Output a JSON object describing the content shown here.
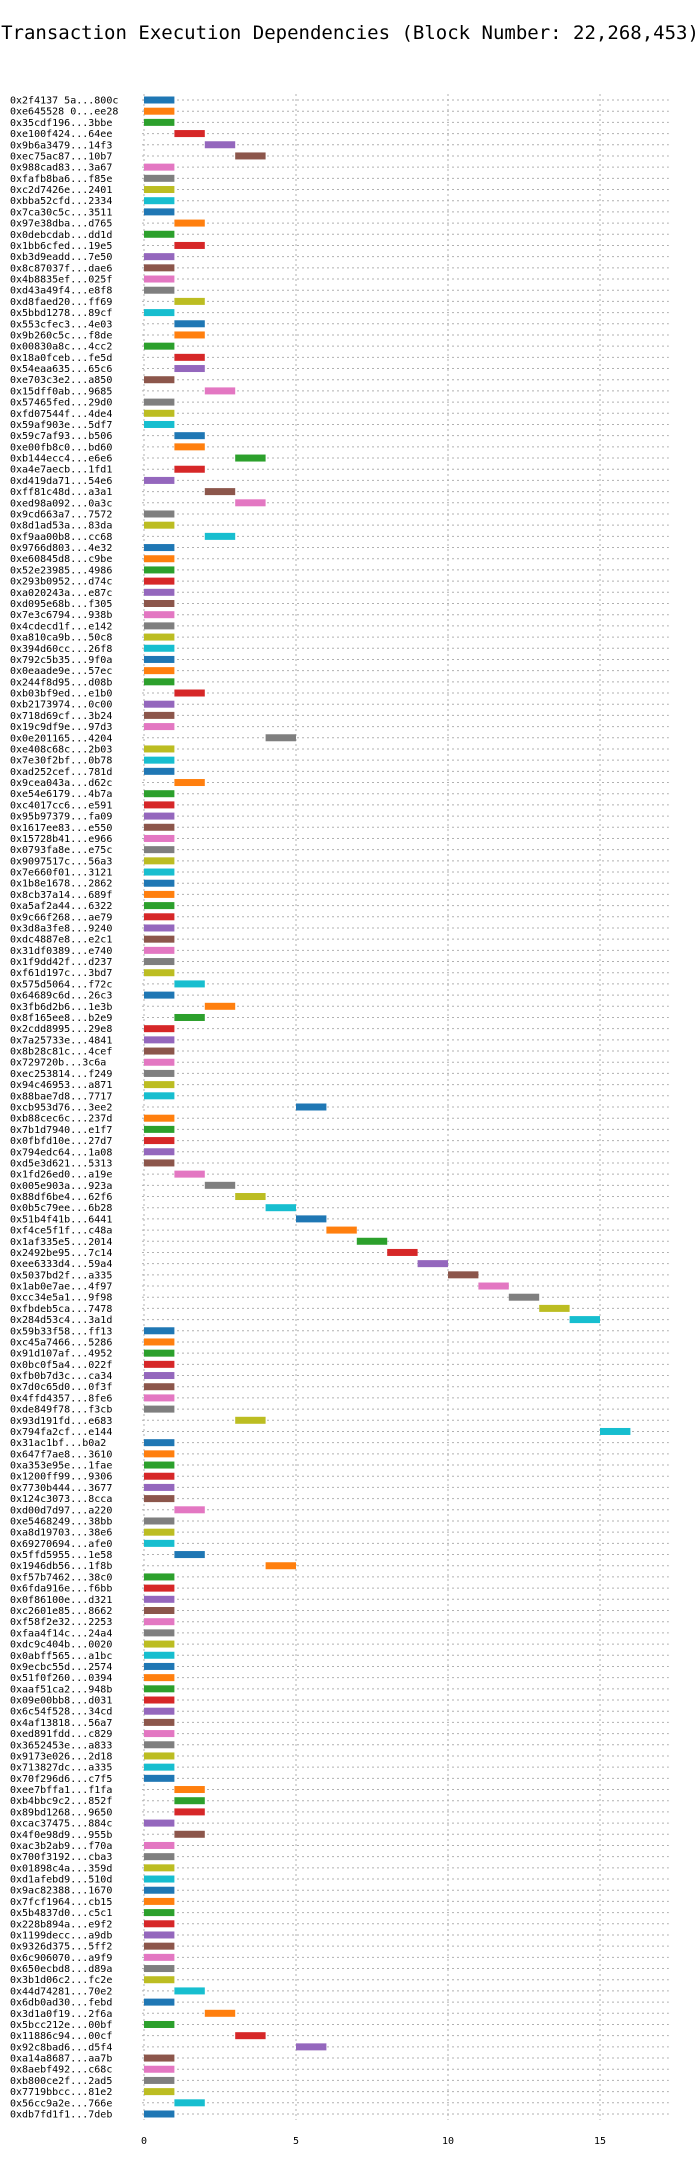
{
  "chart_data": {
    "type": "bar",
    "orientation": "horizontal-gantt",
    "title": "Transaction Execution Dependencies (Block Number: 22,268,453)",
    "xlabel": "",
    "ylabel": "",
    "xlim": [
      0,
      17
    ],
    "xticks": [
      0,
      5,
      10,
      15
    ],
    "grid": true,
    "palette": [
      "#1f77b4",
      "#ff7f0e",
      "#2ca02c",
      "#d62728",
      "#9467bd",
      "#8c564b",
      "#e377c2",
      "#7f7f7f",
      "#bcbd22",
      "#17becf"
    ],
    "bars": [
      {
        "label": "0x2f4137 5a...800c",
        "start": 0
      },
      {
        "label": "0xe645528 0...ee28",
        "start": 0
      },
      {
        "label": "0x35cdf196...3bbe",
        "start": 0
      },
      {
        "label": "0xe100f424...64ee",
        "start": 1
      },
      {
        "label": "0x9b6a3479...14f3",
        "start": 2
      },
      {
        "label": "0xec75ac87...10b7",
        "start": 3
      },
      {
        "label": "0x988cad83...3a67",
        "start": 0
      },
      {
        "label": "0xfafb8ba6...f85e",
        "start": 0
      },
      {
        "label": "0xc2d7426e...2401",
        "start": 0
      },
      {
        "label": "0xbba52cfd...2334",
        "start": 0
      },
      {
        "label": "0x7ca30c5c...3511",
        "start": 0
      },
      {
        "label": "0x97e38dba...d765",
        "start": 1
      },
      {
        "label": "0x0debcdab...dd1d",
        "start": 0
      },
      {
        "label": "0x1bb6cfed...19e5",
        "start": 1
      },
      {
        "label": "0xb3d9eadd...7e50",
        "start": 0
      },
      {
        "label": "0x8c87037f...dae6",
        "start": 0
      },
      {
        "label": "0x4b8835ef...025f",
        "start": 0
      },
      {
        "label": "0xd43a49f4...e8f8",
        "start": 0
      },
      {
        "label": "0xd8faed20...ff69",
        "start": 1
      },
      {
        "label": "0x5bbd1278...89cf",
        "start": 0
      },
      {
        "label": "0x553cfec3...4e03",
        "start": 1
      },
      {
        "label": "0x9b260c5c...f8de",
        "start": 1
      },
      {
        "label": "0x00830a8c...4cc2",
        "start": 0
      },
      {
        "label": "0x18a0fceb...fe5d",
        "start": 1
      },
      {
        "label": "0x54eaa635...65c6",
        "start": 1
      },
      {
        "label": "0xe703c3e2...a850",
        "start": 0
      },
      {
        "label": "0x15dff0ab...9685",
        "start": 2
      },
      {
        "label": "0x57465fed...29d0",
        "start": 0
      },
      {
        "label": "0xfd07544f...4de4",
        "start": 0
      },
      {
        "label": "0x59af903e...5df7",
        "start": 0
      },
      {
        "label": "0x59c7af93...b506",
        "start": 1
      },
      {
        "label": "0xe00fb8c0...bd60",
        "start": 1
      },
      {
        "label": "0xb144ecc4...e6e6",
        "start": 3
      },
      {
        "label": "0xa4e7aecb...1fd1",
        "start": 1
      },
      {
        "label": "0xd419da71...54e6",
        "start": 0
      },
      {
        "label": "0xff81c48d...a3a1",
        "start": 2
      },
      {
        "label": "0xed98a092...0a3c",
        "start": 3
      },
      {
        "label": "0x9cd663a7...7572",
        "start": 0
      },
      {
        "label": "0x8d1ad53a...83da",
        "start": 0
      },
      {
        "label": "0xf9aa00b8...cc68",
        "start": 2
      },
      {
        "label": "0x9766d803...4e32",
        "start": 0
      },
      {
        "label": "0xe60845d8...c9be",
        "start": 0
      },
      {
        "label": "0x52e23985...4986",
        "start": 0
      },
      {
        "label": "0x293b0952...d74c",
        "start": 0
      },
      {
        "label": "0xa020243a...e87c",
        "start": 0
      },
      {
        "label": "0xd095e68b...f305",
        "start": 0
      },
      {
        "label": "0x7e3c6794...938b",
        "start": 0
      },
      {
        "label": "0x4cdecd1f...e142",
        "start": 0
      },
      {
        "label": "0xa810ca9b...50c8",
        "start": 0
      },
      {
        "label": "0x394d60cc...26f8",
        "start": 0
      },
      {
        "label": "0x792c5b35...9f0a",
        "start": 0
      },
      {
        "label": "0x0eaade9e...57ec",
        "start": 0
      },
      {
        "label": "0x244f8d95...d08b",
        "start": 0
      },
      {
        "label": "0xb03bf9ed...e1b0",
        "start": 1
      },
      {
        "label": "0xb2173974...0c00",
        "start": 0
      },
      {
        "label": "0x718d69cf...3b24",
        "start": 0
      },
      {
        "label": "0x19c9df9e...97d3",
        "start": 0
      },
      {
        "label": "0x0e201165...4204",
        "start": 4
      },
      {
        "label": "0xe408c68c...2b03",
        "start": 0
      },
      {
        "label": "0x7e30f2bf...0b78",
        "start": 0
      },
      {
        "label": "0xad252cef...781d",
        "start": 0
      },
      {
        "label": "0x9cea043a...d62c",
        "start": 1
      },
      {
        "label": "0xe54e6179...4b7a",
        "start": 0
      },
      {
        "label": "0xc4017cc6...e591",
        "start": 0
      },
      {
        "label": "0x95b97379...fa09",
        "start": 0
      },
      {
        "label": "0x1617ee83...e550",
        "start": 0
      },
      {
        "label": "0x15728b41...e966",
        "start": 0
      },
      {
        "label": "0x0793fa8e...e75c",
        "start": 0
      },
      {
        "label": "0x9097517c...56a3",
        "start": 0
      },
      {
        "label": "0x7e660f01...3121",
        "start": 0
      },
      {
        "label": "0x1b8e1678...2862",
        "start": 0
      },
      {
        "label": "0x8cb37a14...689f",
        "start": 0
      },
      {
        "label": "0xa5af2a44...6322",
        "start": 0
      },
      {
        "label": "0x9c66f268...ae79",
        "start": 0
      },
      {
        "label": "0x3d8a3fe8...9240",
        "start": 0
      },
      {
        "label": "0xdc4887e8...e2c1",
        "start": 0
      },
      {
        "label": "0x31df0389...e740",
        "start": 0
      },
      {
        "label": "0x1f9dd42f...d237",
        "start": 0
      },
      {
        "label": "0xf61d197c...3bd7",
        "start": 0
      },
      {
        "label": "0x575d5064...f72c",
        "start": 1
      },
      {
        "label": "0x64689c6d...26c3",
        "start": 0
      },
      {
        "label": "0x3fb6d2b6...1e3b",
        "start": 2
      },
      {
        "label": "0x8f165ee8...b2e9",
        "start": 1
      },
      {
        "label": "0x2cdd8995...29e8",
        "start": 0
      },
      {
        "label": "0x7a25733e...4841",
        "start": 0
      },
      {
        "label": "0x8b28c81c...4cef",
        "start": 0
      },
      {
        "label": "0x729720b...3c6a",
        "start": 0
      },
      {
        "label": "0xec253814...f249",
        "start": 0
      },
      {
        "label": "0x94c46953...a871",
        "start": 0
      },
      {
        "label": "0x88bae7d8...7717",
        "start": 0
      },
      {
        "label": "0xcb953d76...3ee2",
        "start": 5
      },
      {
        "label": "0xb88cec6c...237d",
        "start": 0
      },
      {
        "label": "0x7b1d7940...e1f7",
        "start": 0
      },
      {
        "label": "0x0fbfd10e...27d7",
        "start": 0
      },
      {
        "label": "0x794edc64...1a08",
        "start": 0
      },
      {
        "label": "0xd5e3d621...5313",
        "start": 0
      },
      {
        "label": "0x1fd26ed0...a19e",
        "start": 1
      },
      {
        "label": "0x005e903a...923a",
        "start": 2
      },
      {
        "label": "0x88df6be4...62f6",
        "start": 3
      },
      {
        "label": "0x0b5c79ee...6b28",
        "start": 4
      },
      {
        "label": "0x51b4f41b...6441",
        "start": 5
      },
      {
        "label": "0xf4ce5f1f...c48a",
        "start": 6
      },
      {
        "label": "0x1af335e5...2014",
        "start": 7
      },
      {
        "label": "0x2492be95...7c14",
        "start": 8
      },
      {
        "label": "0xee6333d4...59a4",
        "start": 9
      },
      {
        "label": "0x5037bd2f...a335",
        "start": 10
      },
      {
        "label": "0x1ab0e7ae...4f97",
        "start": 11
      },
      {
        "label": "0xcc34e5a1...9f98",
        "start": 12
      },
      {
        "label": "0xfbdeb5ca...7478",
        "start": 13
      },
      {
        "label": "0x284d53c4...3a1d",
        "start": 14
      },
      {
        "label": "0x59b33f58...ff13",
        "start": 0
      },
      {
        "label": "0xc45a7466...5286",
        "start": 0
      },
      {
        "label": "0x91d107af...4952",
        "start": 0
      },
      {
        "label": "0x0bc0f5a4...022f",
        "start": 0
      },
      {
        "label": "0xfb0b7d3c...ca34",
        "start": 0
      },
      {
        "label": "0x7d0c65d0...0f3f",
        "start": 0
      },
      {
        "label": "0x4ffd4357...8fe6",
        "start": 0
      },
      {
        "label": "0xde849f78...f3cb",
        "start": 0
      },
      {
        "label": "0x93d191fd...e683",
        "start": 3
      },
      {
        "label": "0x794fa2cf...e144",
        "start": 15
      },
      {
        "label": "0x31ac1bf...b0a2",
        "start": 0
      },
      {
        "label": "0x647f7ae8...3610",
        "start": 0
      },
      {
        "label": "0xa353e95e...1fae",
        "start": 0
      },
      {
        "label": "0x1200ff99...9306",
        "start": 0
      },
      {
        "label": "0x7730b444...3677",
        "start": 0
      },
      {
        "label": "0x124c3073...8cca",
        "start": 0
      },
      {
        "label": "0xd00d7d97...a220",
        "start": 1
      },
      {
        "label": "0xe5468249...38bb",
        "start": 0
      },
      {
        "label": "0xa8d19703...38e6",
        "start": 0
      },
      {
        "label": "0x69270694...afe0",
        "start": 0
      },
      {
        "label": "0x5ffd5955...1e58",
        "start": 1
      },
      {
        "label": "0x1946db56...1f8b",
        "start": 4
      },
      {
        "label": "0xf57b7462...38c0",
        "start": 0
      },
      {
        "label": "0x6fda916e...f6bb",
        "start": 0
      },
      {
        "label": "0x0f86100e...d321",
        "start": 0
      },
      {
        "label": "0xc2601e85...8662",
        "start": 0
      },
      {
        "label": "0xf58f2e32...2253",
        "start": 0
      },
      {
        "label": "0xfaa4f14c...24a4",
        "start": 0
      },
      {
        "label": "0xdc9c404b...0020",
        "start": 0
      },
      {
        "label": "0x0abff565...a1bc",
        "start": 0
      },
      {
        "label": "0x9ecbc55d...2574",
        "start": 0
      },
      {
        "label": "0x51f0f260...0394",
        "start": 0
      },
      {
        "label": "0xaaf51ca2...948b",
        "start": 0
      },
      {
        "label": "0x09e00bb8...d031",
        "start": 0
      },
      {
        "label": "0x6c54f528...34cd",
        "start": 0
      },
      {
        "label": "0x4af13818...56a7",
        "start": 0
      },
      {
        "label": "0xed891fdd...c829",
        "start": 0
      },
      {
        "label": "0x3652453e...a833",
        "start": 0
      },
      {
        "label": "0x9173e026...2d18",
        "start": 0
      },
      {
        "label": "0x713827dc...a335",
        "start": 0
      },
      {
        "label": "0x70f296d6...c7f5",
        "start": 0
      },
      {
        "label": "0xee7bffa1...f1fa",
        "start": 1
      },
      {
        "label": "0xb4bbc9c2...852f",
        "start": 1
      },
      {
        "label": "0x89bd1268...9650",
        "start": 1
      },
      {
        "label": "0xcac37475...884c",
        "start": 0
      },
      {
        "label": "0x4f0e98d9...955b",
        "start": 1
      },
      {
        "label": "0xac3b2ab9...f70a",
        "start": 0
      },
      {
        "label": "0x700f3192...cba3",
        "start": 0
      },
      {
        "label": "0x01898c4a...359d",
        "start": 0
      },
      {
        "label": "0xd1afebd9...510d",
        "start": 0
      },
      {
        "label": "0x9ac82388...1670",
        "start": 0
      },
      {
        "label": "0x7fcf1964...cb15",
        "start": 0
      },
      {
        "label": "0x5b4837d0...c5c1",
        "start": 0
      },
      {
        "label": "0x228b894a...e9f2",
        "start": 0
      },
      {
        "label": "0x1199decc...a9db",
        "start": 0
      },
      {
        "label": "0x9326d375...5ff2",
        "start": 0
      },
      {
        "label": "0x6c906070...a9f9",
        "start": 0
      },
      {
        "label": "0x650ecbd8...d89a",
        "start": 0
      },
      {
        "label": "0x3b1d06c2...fc2e",
        "start": 0
      },
      {
        "label": "0x44d74281...70e2",
        "start": 1
      },
      {
        "label": "0x6db0ad30...febd",
        "start": 0
      },
      {
        "label": "0x3d1a0f19...2f6a",
        "start": 2
      },
      {
        "label": "0x5bcc212e...00bf",
        "start": 0
      },
      {
        "label": "0x11886c94...00cf",
        "start": 3
      },
      {
        "label": "0x92c8bad6...d5f4",
        "start": 5
      },
      {
        "label": "0xa14a8687...aa7b",
        "start": 0
      },
      {
        "label": "0x8aebf492...c68c",
        "start": 0
      },
      {
        "label": "0xb800ce2f...2ad5",
        "start": 0
      },
      {
        "label": "0x7719bbcc...81e2",
        "start": 0
      },
      {
        "label": "0x56cc9a2e...766e",
        "start": 1
      },
      {
        "label": "0xdb7fd1f1...7deb",
        "start": 0
      }
    ]
  }
}
